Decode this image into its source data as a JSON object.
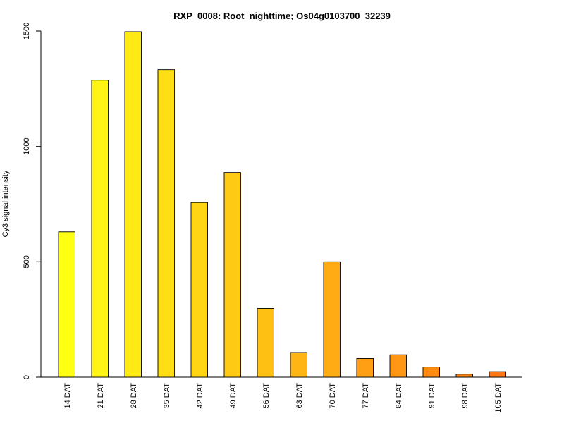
{
  "chart_data": {
    "type": "bar",
    "title": "RXP_0008: Root_nighttime; Os04g0103700_32239",
    "xlabel": "",
    "ylabel": "Cy3 signal intensity",
    "ylim": [
      0,
      1500
    ],
    "yticks": [
      0,
      500,
      1000,
      1500
    ],
    "ytick_labels": [
      "0",
      "500",
      "1000",
      "1500"
    ],
    "grid": false,
    "categories": [
      "14 DAT",
      "21 DAT",
      "28 DAT",
      "35 DAT",
      "42 DAT",
      "49 DAT",
      "56 DAT",
      "63 DAT",
      "70 DAT",
      "77 DAT",
      "84 DAT",
      "91 DAT",
      "98 DAT",
      "105 DAT"
    ],
    "values": [
      630,
      1287,
      1497,
      1333,
      757,
      887,
      298,
      107,
      500,
      81,
      97,
      44,
      13,
      24
    ],
    "colors": [
      "#ffff14",
      "#fff414",
      "#ffea14",
      "#ffdf14",
      "#ffd514",
      "#ffca14",
      "#ffc014",
      "#ffb514",
      "#ffab14",
      "#ffa014",
      "#ff9614",
      "#ff8b14",
      "#ff8114",
      "#ff7614"
    ],
    "bar_edge_color": "#000000"
  }
}
